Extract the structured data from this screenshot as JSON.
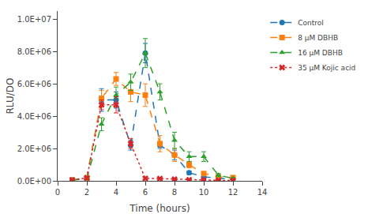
{
  "chart_data": {
    "type": "line",
    "xlabel": "Time (hours)",
    "ylabel": "RLU/DO",
    "xlim": [
      0,
      14
    ],
    "ylim": [
      0,
      10500000
    ],
    "xticks": [
      0,
      2,
      4,
      6,
      8,
      10,
      12,
      14
    ],
    "yticks": [
      {
        "value": 0,
        "label": "0.0E+00"
      },
      {
        "value": 2000000,
        "label": "2.0E+06"
      },
      {
        "value": 4000000,
        "label": "4.0E+06"
      },
      {
        "value": 6000000,
        "label": "6.0E+06"
      },
      {
        "value": 8000000,
        "label": "8.0E+06"
      },
      {
        "value": 10000000,
        "label": "1.0E+07"
      }
    ],
    "grid": false,
    "legend": "right",
    "x": [
      1,
      2,
      3,
      4,
      5,
      6,
      7,
      8,
      9,
      10,
      11,
      12
    ],
    "series": [
      {
        "name": "Control",
        "marker": "circle",
        "line_style": "dashed",
        "values": [
          50000,
          200000,
          5000000,
          5000000,
          2200000,
          7900000,
          2200000,
          1600000,
          500000,
          250000,
          150000,
          150000
        ],
        "yerr": [
          20000,
          80000,
          700000,
          500000,
          300000,
          600000,
          200000,
          300000,
          100000,
          80000,
          50000,
          50000
        ]
      },
      {
        "name": "8 μM DBHB",
        "marker": "square",
        "line_style": "dashed",
        "values": [
          50000,
          180000,
          5100000,
          6300000,
          5500000,
          5300000,
          2300000,
          1600000,
          1000000,
          450000,
          250000,
          200000
        ],
        "yerr": [
          20000,
          60000,
          500000,
          400000,
          600000,
          700000,
          500000,
          400000,
          200000,
          100000,
          60000,
          50000
        ]
      },
      {
        "name": "16 μM DBHB",
        "marker": "triangle-up",
        "line_style": "dashed",
        "values": [
          50000,
          120000,
          3500000,
          5300000,
          6100000,
          7900000,
          5500000,
          2500000,
          1500000,
          1500000,
          350000,
          150000
        ],
        "yerr": [
          20000,
          50000,
          400000,
          500000,
          500000,
          900000,
          500000,
          500000,
          300000,
          300000,
          100000,
          50000
        ]
      },
      {
        "name": "35 μM Kojic acid",
        "marker": "x",
        "line_style": "dotted",
        "values": [
          50000,
          180000,
          4700000,
          4700000,
          2300000,
          150000,
          140000,
          100000,
          60000,
          50000,
          30000,
          20000
        ],
        "yerr": [
          20000,
          60000,
          300000,
          500000,
          300000,
          50000,
          40000,
          30000,
          20000,
          20000,
          10000,
          10000
        ]
      }
    ]
  }
}
